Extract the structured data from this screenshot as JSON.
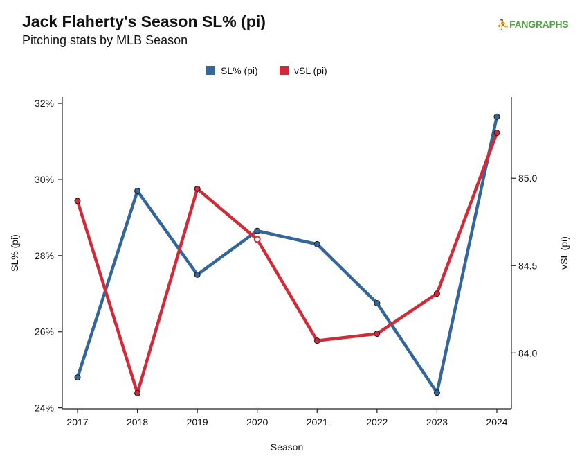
{
  "header": {
    "title": "Jack Flaherty's Season SL% (pi)",
    "subtitle": "Pitching stats by MLB Season",
    "logo": "FANGRAPHS"
  },
  "chart_data": {
    "type": "line",
    "xlabel": "Season",
    "x": [
      2017,
      2018,
      2019,
      2020,
      2021,
      2022,
      2023,
      2024
    ],
    "series": [
      {
        "name": "SL% (pi)",
        "axis": "left",
        "color": "#336699",
        "values": [
          24.8,
          29.7,
          27.5,
          28.65,
          28.3,
          26.75,
          24.4,
          31.65
        ]
      },
      {
        "name": "vSL (pi)",
        "axis": "right",
        "color": "#d12b3a",
        "values": [
          84.87,
          83.77,
          84.94,
          84.65,
          84.07,
          84.11,
          84.34,
          85.26
        ]
      }
    ],
    "left_axis": {
      "label": "SL% (pi)",
      "ticks": [
        24,
        26,
        28,
        30,
        32
      ],
      "tick_labels": [
        "24%",
        "26%",
        "28%",
        "30%",
        "32%"
      ],
      "range": [
        23.975,
        32.165
      ]
    },
    "right_axis": {
      "label": "vSL (pi)",
      "ticks": [
        84.0,
        84.5,
        85.0
      ],
      "tick_labels": [
        "84.0",
        "84.5",
        "85.0"
      ],
      "range": [
        83.68,
        85.465
      ]
    },
    "legend_position": "top-center",
    "grid": false
  }
}
